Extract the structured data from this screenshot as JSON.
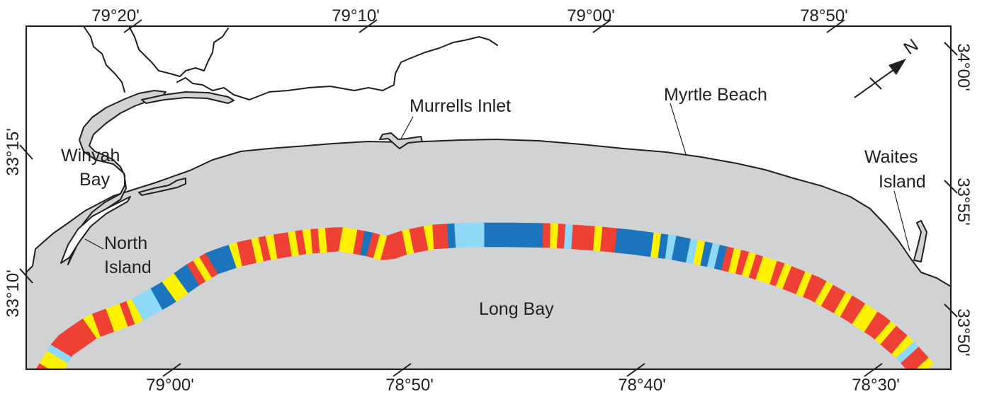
{
  "colors": {
    "water": "#d1d2d4",
    "land": "#ffffff",
    "outline": "#231f20",
    "segment_red": "#ee4035",
    "segment_yellow": "#fff200",
    "segment_dark_blue": "#1c75bc",
    "segment_light_blue": "#8ed8f8"
  },
  "labels": {
    "winyah_bay": [
      "Winyah",
      "Bay"
    ],
    "north_island": [
      "North",
      "Island"
    ],
    "murrells_inlet": "Murrells Inlet",
    "myrtle_beach": "Myrtle Beach",
    "waites_island": [
      "Waites",
      "Island"
    ],
    "long_bay": "Long Bay"
  },
  "north_arrow": {
    "label": "N",
    "icon": "north-arrow-icon"
  },
  "graticule": {
    "top": [
      "79°20'",
      "79°10'",
      "79°00'",
      "78°50'"
    ],
    "bottom": [
      "79°00'",
      "78°50'",
      "78°40'",
      "78°30'"
    ],
    "left": [
      "33°15'",
      "33°10'"
    ],
    "right": [
      "34°00'",
      "33°55'",
      "33°50'"
    ]
  },
  "offshore_band": {
    "description_colors": [
      "red",
      "yellow",
      "dark-blue",
      "light-blue"
    ],
    "sequence": [
      "red",
      "red",
      "yellow",
      "yellow",
      "lightblue",
      "red",
      "red",
      "red",
      "red",
      "red",
      "yellow",
      "red",
      "red",
      "yellow",
      "yellow",
      "red",
      "yellow",
      "lightblue",
      "lightblue",
      "lightblue",
      "blue",
      "blue",
      "yellow",
      "yellow",
      "blue",
      "blue",
      "red",
      "yellow",
      "red",
      "blue",
      "blue",
      "blue",
      "yellow",
      "red",
      "red",
      "yellow",
      "red",
      "yellow",
      "red",
      "red",
      "yellow",
      "red",
      "yellow",
      "red",
      "yellow",
      "red",
      "red",
      "yellow",
      "yellow",
      "red",
      "blue",
      "red",
      "yellow",
      "red",
      "red",
      "red",
      "yellow",
      "red",
      "red",
      "yellow",
      "red",
      "red",
      "blue",
      "lightblue",
      "lightblue",
      "lightblue",
      "lightblue",
      "blue",
      "blue",
      "blue",
      "blue",
      "blue",
      "blue",
      "blue",
      "blue",
      "red",
      "yellow",
      "red",
      "lightblue",
      "red",
      "red",
      "red",
      "yellow",
      "red",
      "red",
      "blue",
      "blue",
      "blue",
      "blue",
      "blue",
      "yellow",
      "blue",
      "lightblue",
      "blue",
      "blue",
      "lightblue",
      "yellow",
      "blue",
      "lightblue",
      "blue",
      "red",
      "yellow",
      "red",
      "yellow",
      "red",
      "yellow",
      "yellow",
      "red",
      "yellow",
      "red",
      "red",
      "yellow",
      "red",
      "red",
      "yellow",
      "red",
      "red",
      "yellow",
      "red",
      "red",
      "yellow",
      "yellow",
      "red",
      "red",
      "yellow",
      "red",
      "red",
      "yellow",
      "lightblue",
      "red",
      "red",
      "yellow"
    ]
  }
}
